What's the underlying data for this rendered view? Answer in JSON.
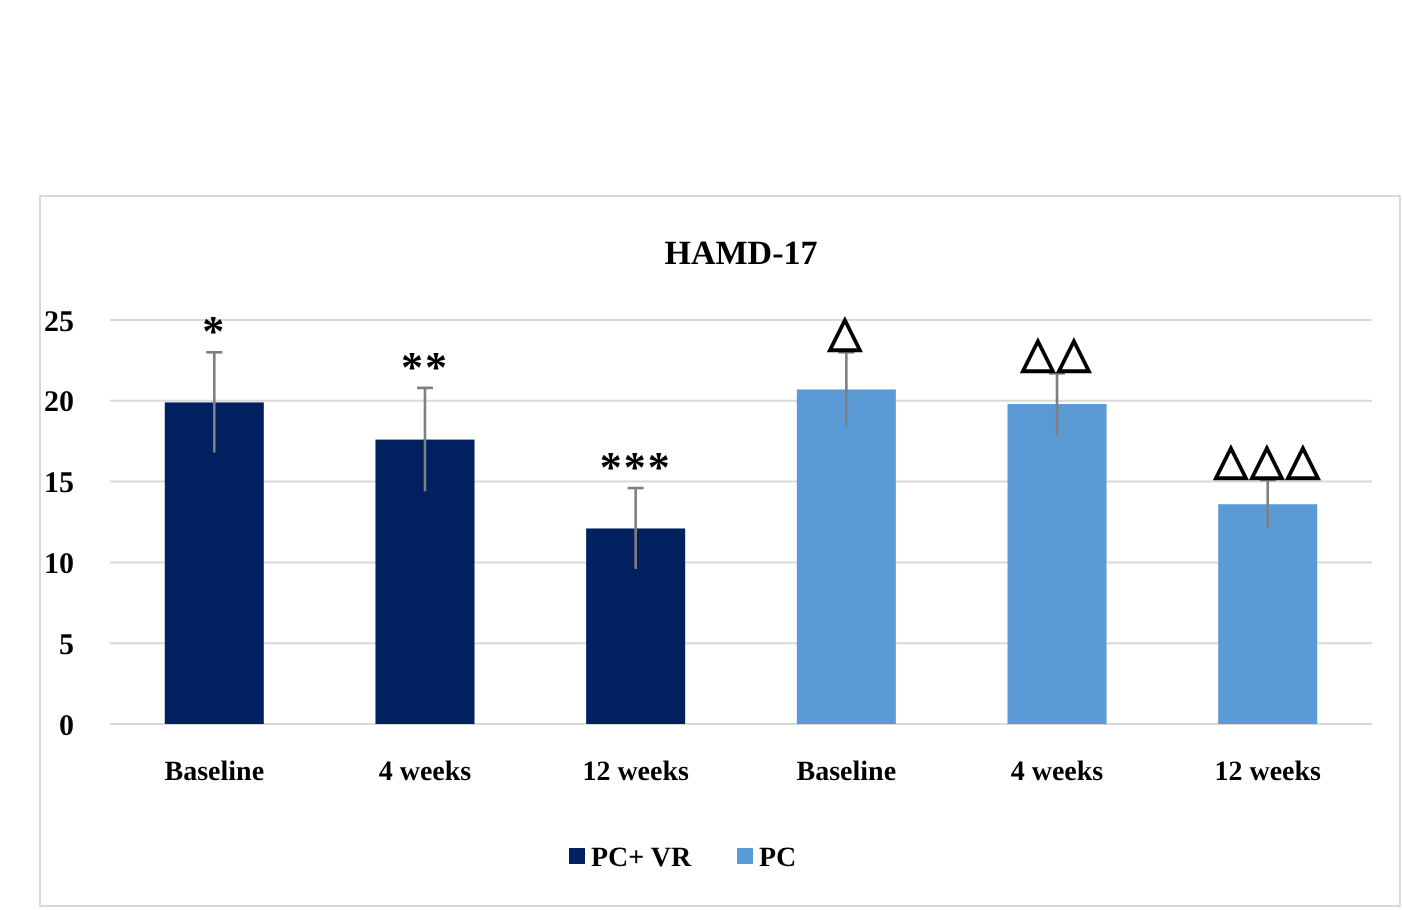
{
  "chart_data": {
    "type": "bar",
    "title": "HAMD-17",
    "categories": [
      "Baseline",
      "4 weeks",
      "12 weeks",
      "Baseline",
      "4 weeks",
      "12 weeks"
    ],
    "series": [
      {
        "name": "PC+ VR",
        "color": "#002060",
        "values": [
          19.9,
          17.6,
          12.1,
          null,
          null,
          null
        ],
        "errors": [
          3.1,
          3.2,
          2.5,
          null,
          null,
          null
        ]
      },
      {
        "name": "PC",
        "color": "#5b9bd5",
        "values": [
          null,
          null,
          null,
          20.7,
          19.8,
          13.6
        ],
        "errors": [
          null,
          null,
          null,
          2.3,
          1.9,
          1.5
        ]
      }
    ],
    "ylim": [
      0,
      25
    ],
    "yticks": [
      0,
      5,
      10,
      15,
      20,
      25
    ],
    "grid": "y",
    "legend": "bottom",
    "annotations": [
      "*",
      "**",
      "***",
      "△",
      "△△",
      "△△△"
    ]
  }
}
